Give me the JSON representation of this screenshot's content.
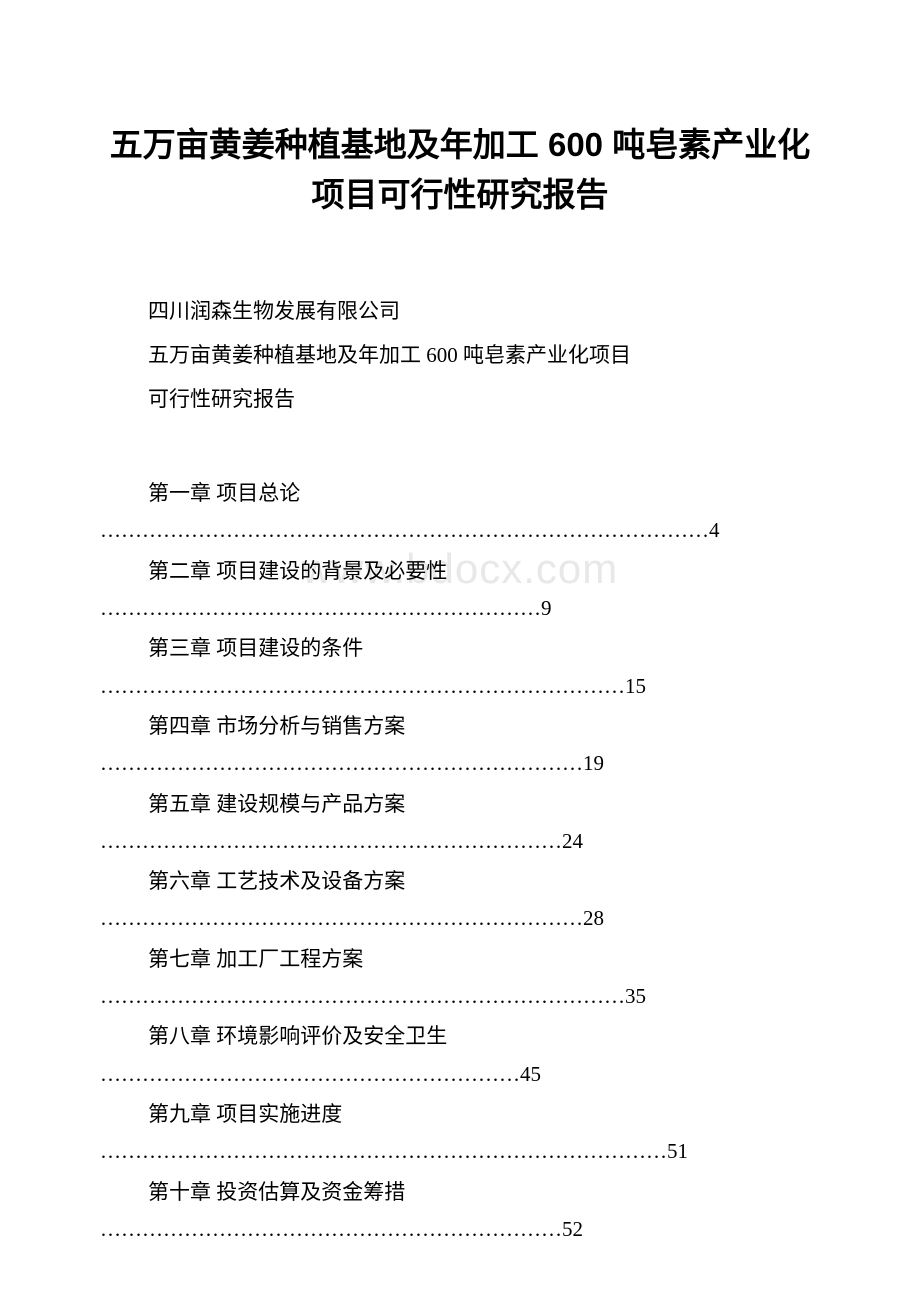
{
  "document": {
    "title": "五万亩黄姜种植基地及年加工 600 吨皂素产业化项目可行性研究报告",
    "subtitle_lines": [
      "四川润森生物发展有限公司",
      "五万亩黄姜种植基地及年加工 600 吨皂素产业化项目",
      "可行性研究报告"
    ],
    "watermark": "www.bdocx.com",
    "toc": [
      {
        "label": "第一章 项目总论",
        "dots": "……………………………………………………………………………",
        "page": "4"
      },
      {
        "label": "第二章  项目建设的背景及必要性",
        "dots": "………………………………………………………",
        "page": "9"
      },
      {
        "label": "第三章 项目建设的条件",
        "dots": "…………………………………………………………………",
        "page": "15"
      },
      {
        "label": "第四章 市场分析与销售方案",
        "dots": "……………………………………………………………",
        "page": "19"
      },
      {
        "label": "第五章 建设规模与产品方案",
        "dots": "…………………………………………………………",
        "page": "24"
      },
      {
        "label": "第六章 工艺技术及设备方案",
        "dots": "……………………………………………………………",
        "page": "28"
      },
      {
        "label": "第七章 加工厂工程方案",
        "dots": "…………………………………………………………………",
        "page": "35"
      },
      {
        "label": "第八章 环境影响评价及安全卫生",
        "dots": "……………………………………………………",
        "page": "45"
      },
      {
        "label": "第九章 项目实施进度",
        "dots": "………………………………………………………………………",
        "page": "51"
      },
      {
        "label": "第十章 投资估算及资金筹措",
        "dots": "…………………………………………………………",
        "page": "52"
      }
    ],
    "colors": {
      "text": "#000000",
      "background": "#ffffff",
      "watermark": "#e8e8e8"
    },
    "typography": {
      "title_fontsize": 33,
      "body_fontsize": 21,
      "title_weight": "bold",
      "font_family_title": "SimHei",
      "font_family_body": "SimSun"
    }
  }
}
